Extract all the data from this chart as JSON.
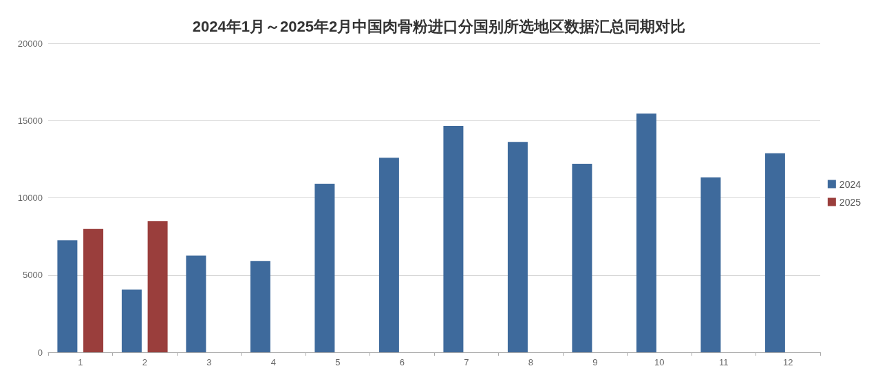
{
  "chart_data": {
    "type": "bar",
    "title": "2024年1月～2025年2月中国肉骨粉进口分国别所选地区数据汇总同期对比",
    "categories": [
      "1",
      "2",
      "3",
      "4",
      "5",
      "6",
      "7",
      "8",
      "9",
      "10",
      "11",
      "12"
    ],
    "series": [
      {
        "name": "2024",
        "color": "#3e6a9c",
        "values": [
          7250,
          4060,
          6260,
          5910,
          10910,
          12590,
          14660,
          13620,
          12200,
          15460,
          11330,
          12880
        ]
      },
      {
        "name": "2025",
        "color": "#9a3e3c",
        "values": [
          7980,
          8500,
          null,
          null,
          null,
          null,
          null,
          null,
          null,
          null,
          null,
          null
        ]
      }
    ],
    "ylim": [
      0,
      20000
    ],
    "yticks": [
      0,
      5000,
      10000,
      15000,
      20000
    ],
    "grid": "y",
    "legend": "right"
  }
}
